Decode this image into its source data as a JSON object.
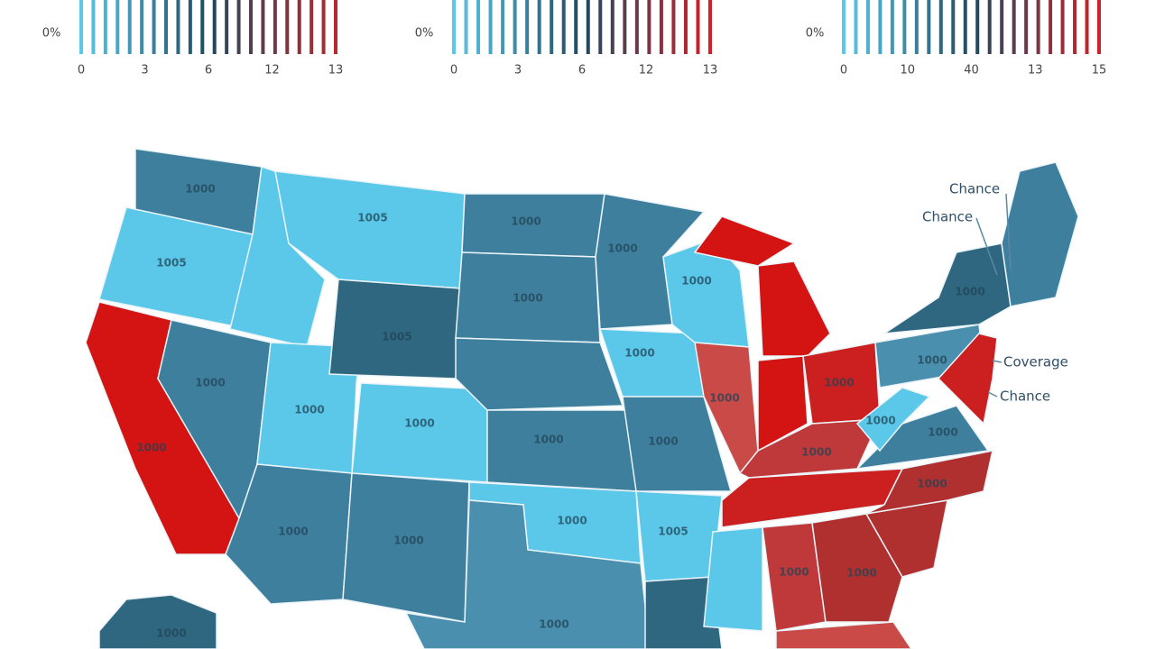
{
  "legends": [
    {
      "axis_label": "0%",
      "ticks": [
        "0",
        "3",
        "6",
        "12",
        "13"
      ],
      "colors": [
        "#5bc8ea",
        "#1e4a60",
        "#b8282d"
      ]
    },
    {
      "axis_label": "0%",
      "ticks": [
        "0",
        "3",
        "6",
        "12",
        "13"
      ],
      "colors": [
        "#5bc8ea",
        "#1e4a60",
        "#d0202a"
      ]
    },
    {
      "axis_label": "0%",
      "ticks": [
        "0",
        "10",
        "40",
        "13",
        "15"
      ],
      "colors": [
        "#5bc8ea",
        "#1e4a60",
        "#d0202a"
      ]
    }
  ],
  "map": {
    "states": [
      {
        "label": "1000",
        "color": "#3f7f9e"
      },
      {
        "label": "1005",
        "color": "#5bc8ea"
      },
      {
        "label": "1000",
        "color": "#d41313"
      },
      {
        "color": "#5bc8ea"
      },
      {
        "label": "1005",
        "color": "#5bc8ea"
      },
      {
        "label": "1000",
        "color": "#3f7f9e"
      },
      {
        "label": "1000",
        "color": "#5bc8ea"
      },
      {
        "label": "1005",
        "color": "#2f6680"
      },
      {
        "label": "1000",
        "color": "#5bc8ea"
      },
      {
        "label": "1000",
        "color": "#3f7f9e"
      },
      {
        "label": "1000",
        "color": "#3f7f9e"
      },
      {
        "label": "1000",
        "color": "#3f7f9e"
      },
      {
        "label": "1000",
        "color": "#3f7f9e"
      },
      {
        "color": "#3f7f9e"
      },
      {
        "label": "1000",
        "color": "#3f7f9e"
      },
      {
        "label": "1000",
        "color": "#5bc8ea"
      },
      {
        "label": "1000",
        "color": "#4b8fae"
      },
      {
        "label": "1000",
        "color": "#3f7f9e"
      },
      {
        "label": "1000",
        "color": "#5bc8ea"
      },
      {
        "label": "1000",
        "color": "#3f7f9e"
      },
      {
        "label": "1005",
        "color": "#5bc8ea"
      },
      {
        "color": "#2f6680"
      },
      {
        "label": "1000",
        "color": "#5bc8ea"
      },
      {
        "label": "1000",
        "color": "#c94a46"
      },
      {
        "color": "#d41313"
      },
      {
        "color": "#d41313"
      },
      {
        "label": "1000",
        "color": "#cc2020"
      },
      {
        "label": "1000",
        "color": "#c0393a"
      },
      {
        "color": "#cc2020"
      },
      {
        "color": "#5bc8ea"
      },
      {
        "label": "1000",
        "color": "#c0393a"
      },
      {
        "label": "1000",
        "color": "#b03030"
      },
      {
        "color": "#b03030"
      },
      {
        "label": "1000",
        "color": "#b03030"
      },
      {
        "label": "1000",
        "color": "#3f7f9e"
      },
      {
        "label": "1000",
        "color": "#5bc8ea"
      },
      {
        "label": "1000",
        "color": "#4b8fae"
      },
      {
        "label": "1000",
        "color": "#2f6680"
      },
      {
        "color": "#3f7f9e"
      },
      {
        "color": "#cc2020"
      },
      {
        "color": "#c94a46"
      },
      {
        "label": "1000",
        "color": "#2f6680"
      }
    ],
    "annotations": [
      "Chance",
      "Chance",
      "Coverage",
      "Chance"
    ]
  }
}
